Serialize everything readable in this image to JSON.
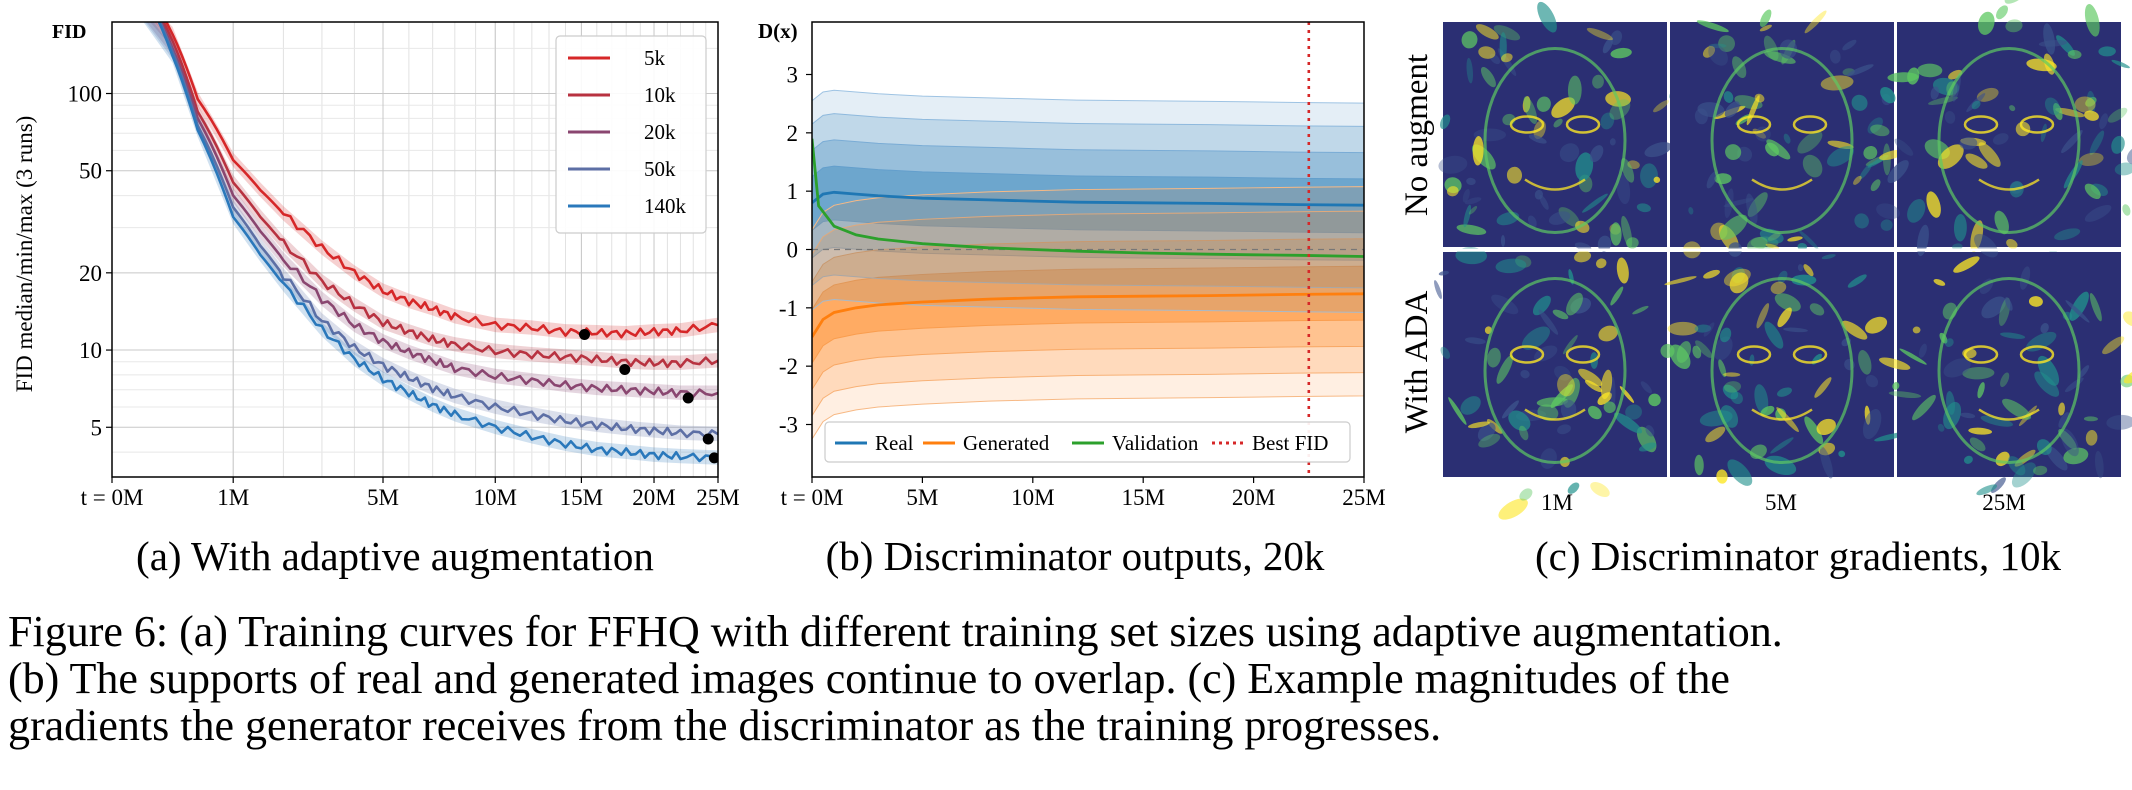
{
  "chart_data": [
    {
      "type": "line",
      "panel_caption": "(a) With adaptive augmentation",
      "ylabel": "FID median/min/max (3 runs)",
      "ytitle": "FID",
      "yscale": "log",
      "ylim": [
        3.2,
        190
      ],
      "xscale": "sqrt",
      "xlim": [
        0,
        25
      ],
      "x_ticks": [
        "t = 0M",
        "1M",
        "5M",
        "10M",
        "15M",
        "20M",
        "25M"
      ],
      "y_ticks": [
        "5",
        "10",
        "20",
        "50",
        "100"
      ],
      "legend_position": "top-right",
      "series": [
        {
          "name": "5k",
          "color": "#d62728",
          "x": [
            0,
            0.25,
            0.5,
            1,
            1.5,
            2,
            3,
            4,
            5,
            6,
            7,
            8,
            10,
            12,
            14,
            16,
            18,
            20,
            22,
            25
          ],
          "values": [
            300,
            170,
            95,
            55,
            42,
            34,
            25,
            20,
            17,
            15.5,
            14.5,
            13.5,
            12.5,
            12.2,
            11.8,
            11.7,
            11.6,
            11.8,
            11.9,
            12.5
          ],
          "best": [
            15.2,
            11.5
          ]
        },
        {
          "name": "10k",
          "color": "#b83240",
          "x": [
            0,
            0.25,
            0.5,
            1,
            1.5,
            2,
            3,
            4,
            5,
            6,
            7,
            8,
            10,
            12,
            14,
            16,
            18,
            20,
            22,
            25
          ],
          "values": [
            300,
            160,
            85,
            45,
            33,
            26,
            18.5,
            15,
            12.8,
            11.8,
            11,
            10.5,
            9.9,
            9.6,
            9.4,
            9.2,
            9.0,
            8.9,
            8.9,
            9.1
          ],
          "best": [
            17.9,
            8.4
          ]
        },
        {
          "name": "20k",
          "color": "#8a4670",
          "x": [
            0,
            0.25,
            0.5,
            1,
            1.5,
            2,
            3,
            4,
            5,
            6,
            7,
            8,
            10,
            12,
            14,
            16,
            18,
            20,
            22,
            25
          ],
          "values": [
            300,
            150,
            80,
            40,
            29,
            22.5,
            15.8,
            12.5,
            10.8,
            9.8,
            9.1,
            8.5,
            7.9,
            7.6,
            7.3,
            7.1,
            7.0,
            6.9,
            6.8,
            6.8
          ],
          "best": [
            22.6,
            6.5
          ]
        },
        {
          "name": "50k",
          "color": "#5d6fa5",
          "x": [
            0,
            0.25,
            0.5,
            1,
            1.5,
            2,
            3,
            4,
            5,
            6,
            7,
            8,
            10,
            12,
            14,
            16,
            18,
            20,
            22,
            25
          ],
          "values": [
            300,
            145,
            75,
            36,
            25.5,
            19.5,
            13,
            10.2,
            8.7,
            7.8,
            7.1,
            6.6,
            6.0,
            5.6,
            5.3,
            5.1,
            4.95,
            4.85,
            4.75,
            4.7
          ],
          "best": [
            24.2,
            4.5
          ]
        },
        {
          "name": "140k",
          "color": "#2a78bb",
          "x": [
            0,
            0.25,
            0.5,
            1,
            1.5,
            2,
            3,
            4,
            5,
            6,
            7,
            8,
            10,
            12,
            14,
            16,
            18,
            20,
            22,
            25
          ],
          "values": [
            300,
            140,
            72,
            33,
            23.5,
            18,
            12,
            9.2,
            7.7,
            6.8,
            6.1,
            5.6,
            5.0,
            4.6,
            4.3,
            4.1,
            4.0,
            3.9,
            3.85,
            3.8
          ],
          "best": [
            24.7,
            3.8
          ]
        }
      ]
    },
    {
      "type": "line",
      "panel_caption": "(b) Discriminator outputs, 20k",
      "ytitle": "D(x)",
      "xlim": [
        0,
        25
      ],
      "ylim": [
        -3.9,
        3.9
      ],
      "x_ticks": [
        "t = 0M",
        "5M",
        "10M",
        "15M",
        "20M",
        "25M"
      ],
      "y_ticks": [
        "3",
        "2",
        "1",
        "0",
        "-1",
        "-2",
        "-3"
      ],
      "best_fid_x": 22.5,
      "legend_position": "bottom",
      "series": [
        {
          "name": "Real",
          "color": "#1f77b4",
          "x": [
            0,
            0.5,
            1,
            2,
            3,
            5,
            8,
            10,
            12,
            15,
            18,
            20,
            22,
            25
          ],
          "values": [
            0.8,
            0.95,
            0.98,
            0.95,
            0.92,
            0.88,
            0.85,
            0.83,
            0.81,
            0.8,
            0.79,
            0.78,
            0.77,
            0.76
          ]
        },
        {
          "name": "Generated",
          "color": "#ff7f0e",
          "x": [
            0,
            0.5,
            1,
            2,
            3,
            5,
            8,
            10,
            12,
            15,
            18,
            20,
            22,
            25
          ],
          "values": [
            -1.5,
            -1.2,
            -1.08,
            -1.0,
            -0.95,
            -0.9,
            -0.85,
            -0.83,
            -0.81,
            -0.8,
            -0.79,
            -0.78,
            -0.77,
            -0.76
          ]
        },
        {
          "name": "Validation",
          "color": "#2ca02c",
          "x": [
            0,
            0.3,
            1,
            2,
            3,
            5,
            8,
            10,
            12,
            15,
            18,
            20,
            22,
            25
          ],
          "values": [
            1.9,
            0.75,
            0.4,
            0.25,
            0.18,
            0.1,
            0.03,
            0.0,
            -0.03,
            -0.06,
            -0.08,
            -0.09,
            -0.1,
            -0.12
          ]
        },
        {
          "name": "Best FID",
          "color": "#d62728",
          "style": "dotted"
        }
      ]
    }
  ],
  "panel_c": {
    "caption": "(c) Discriminator gradients, 10k",
    "row_labels": [
      "No augment",
      "With ADA"
    ],
    "col_labels": [
      "1M",
      "5M",
      "25M"
    ]
  },
  "figure_caption": [
    "Figure 6: (a) Training curves for FFHQ with different training set sizes using adaptive augmentation.",
    "(b) The supports of real and generated images continue to overlap. (c) Example magnitudes of the",
    "gradients the generator receives from the discriminator as the training progresses."
  ]
}
